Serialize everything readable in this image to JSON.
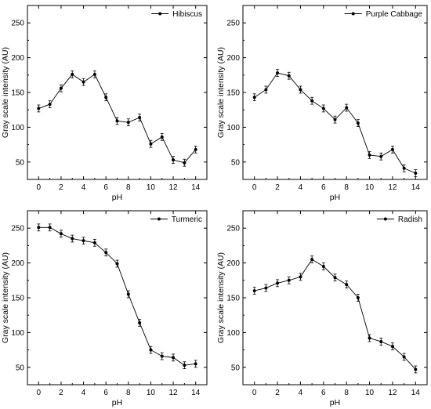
{
  "chart_data": [
    {
      "type": "line",
      "title": "",
      "xlabel": "pH",
      "ylabel": "Gray scale intensity (AU)",
      "x": [
        0,
        1,
        2,
        3,
        4,
        5,
        6,
        7,
        8,
        9,
        10,
        11,
        12,
        13,
        14
      ],
      "xticks": [
        0,
        2,
        4,
        6,
        8,
        10,
        12,
        14
      ],
      "yticks": [
        50,
        100,
        150,
        200,
        250
      ],
      "xlim": [
        -1,
        15
      ],
      "ylim": [
        25,
        275
      ],
      "legend_position": "top-right",
      "series": [
        {
          "name": "Hibiscus",
          "values": [
            127,
            133,
            156,
            176,
            165,
            176,
            143,
            109,
            107,
            114,
            76,
            86,
            53,
            49,
            68
          ],
          "errors": [
            5,
            5,
            5,
            5,
            5,
            5,
            5,
            5,
            5,
            5,
            5,
            5,
            5,
            5,
            5
          ]
        }
      ]
    },
    {
      "type": "line",
      "title": "",
      "xlabel": "pH",
      "ylabel": "Gray scale intensity (AU)",
      "x": [
        0,
        1,
        2,
        3,
        4,
        5,
        6,
        7,
        8,
        9,
        10,
        11,
        12,
        13,
        14
      ],
      "xticks": [
        0,
        2,
        4,
        6,
        8,
        10,
        12,
        14
      ],
      "yticks": [
        50,
        100,
        150,
        200,
        250
      ],
      "xlim": [
        -1,
        15
      ],
      "ylim": [
        25,
        275
      ],
      "legend_position": "top-right",
      "series": [
        {
          "name": "Purple Cabbage",
          "values": [
            143,
            154,
            178,
            174,
            154,
            138,
            127,
            111,
            128,
            106,
            60,
            58,
            68,
            41,
            34
          ],
          "errors": [
            5,
            5,
            5,
            5,
            5,
            5,
            5,
            5,
            5,
            5,
            5,
            5,
            5,
            5,
            5
          ]
        }
      ]
    },
    {
      "type": "line",
      "title": "",
      "xlabel": "pH",
      "ylabel": "Gray scale intensity (AU)",
      "x": [
        0,
        1,
        2,
        3,
        4,
        5,
        6,
        7,
        8,
        9,
        10,
        11,
        12,
        13,
        14
      ],
      "xticks": [
        0,
        2,
        4,
        6,
        8,
        10,
        12,
        14
      ],
      "yticks": [
        50,
        100,
        150,
        200,
        250
      ],
      "xlim": [
        -1,
        15
      ],
      "ylim": [
        25,
        275
      ],
      "legend_position": "top-right",
      "series": [
        {
          "name": "Turmeric",
          "values": [
            251,
            251,
            242,
            235,
            232,
            229,
            215,
            199,
            155,
            114,
            75,
            66,
            64,
            53,
            55
          ],
          "errors": [
            5,
            5,
            5,
            5,
            5,
            5,
            5,
            5,
            5,
            5,
            5,
            5,
            5,
            5,
            5
          ]
        }
      ]
    },
    {
      "type": "line",
      "title": "",
      "xlabel": "pH",
      "ylabel": "Gray scale intensity (AU)",
      "x": [
        0,
        1,
        2,
        3,
        4,
        5,
        6,
        7,
        8,
        9,
        10,
        11,
        12,
        13,
        14
      ],
      "xticks": [
        0,
        2,
        4,
        6,
        8,
        10,
        12,
        14
      ],
      "yticks": [
        50,
        100,
        150,
        200,
        250
      ],
      "xlim": [
        -1,
        15
      ],
      "ylim": [
        25,
        275
      ],
      "legend_position": "top-right",
      "series": [
        {
          "name": "Radish",
          "values": [
            160,
            164,
            171,
            175,
            180,
            205,
            195,
            179,
            169,
            150,
            92,
            87,
            80,
            65,
            47
          ],
          "errors": [
            5,
            5,
            5,
            5,
            5,
            5,
            5,
            5,
            5,
            5,
            5,
            5,
            5,
            5,
            5
          ]
        }
      ]
    }
  ]
}
